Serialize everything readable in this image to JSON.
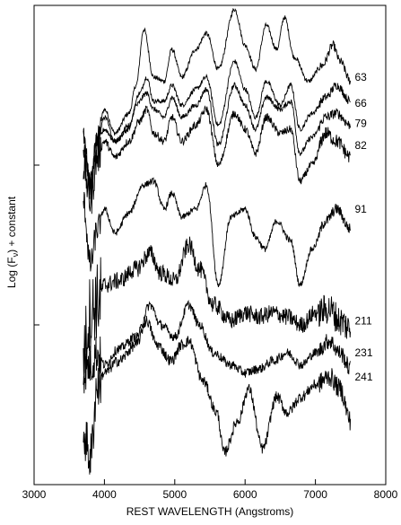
{
  "chart_data": {
    "type": "line",
    "xlabel": "REST WAVELENGTH  (Angstroms)",
    "ylabel_main": "Log (F",
    "ylabel_sub": "ν",
    "ylabel_tail": ")  + constant",
    "xlim": [
      3000,
      8000
    ],
    "x_ticks": [
      3000,
      4000,
      5000,
      6000,
      7000,
      8000
    ],
    "x_tick_labels": [
      "3000",
      "4000",
      "5000",
      "6000",
      "7000",
      "8000"
    ],
    "ylim": [
      0,
      12
    ],
    "y_ticks_unlabeled": [
      4,
      8
    ],
    "series": [
      {
        "name": "63",
        "offset": 10.2,
        "noise": 0.06,
        "points": [
          [
            3700,
            8.3
          ],
          [
            3800,
            7.6
          ],
          [
            3900,
            8.7
          ],
          [
            4000,
            9.4
          ],
          [
            4150,
            8.8
          ],
          [
            4350,
            9.3
          ],
          [
            4450,
            10.0
          ],
          [
            4560,
            11.4
          ],
          [
            4700,
            10.2
          ],
          [
            4850,
            10.1
          ],
          [
            4960,
            10.9
          ],
          [
            5100,
            10.2
          ],
          [
            5300,
            10.9
          ],
          [
            5450,
            11.3
          ],
          [
            5620,
            10.4
          ],
          [
            5850,
            11.9
          ],
          [
            6000,
            11.0
          ],
          [
            6150,
            10.4
          ],
          [
            6300,
            11.5
          ],
          [
            6450,
            10.9
          ],
          [
            6560,
            11.7
          ],
          [
            6700,
            10.7
          ],
          [
            6900,
            10.1
          ],
          [
            7100,
            10.5
          ],
          [
            7250,
            11.0
          ],
          [
            7350,
            10.6
          ],
          [
            7500,
            10.1
          ]
        ]
      },
      {
        "name": "66",
        "offset": 9.55,
        "noise": 0.06,
        "points": [
          [
            3700,
            8.8
          ],
          [
            3800,
            7.5
          ],
          [
            3900,
            8.6
          ],
          [
            4000,
            9.2
          ],
          [
            4150,
            8.6
          ],
          [
            4350,
            9.0
          ],
          [
            4500,
            9.8
          ],
          [
            4600,
            10.2
          ],
          [
            4700,
            9.6
          ],
          [
            4850,
            9.6
          ],
          [
            4960,
            10.0
          ],
          [
            5100,
            9.5
          ],
          [
            5300,
            9.9
          ],
          [
            5450,
            10.2
          ],
          [
            5620,
            9.0
          ],
          [
            5850,
            10.6
          ],
          [
            6000,
            9.9
          ],
          [
            6150,
            9.2
          ],
          [
            6300,
            10.1
          ],
          [
            6500,
            9.5
          ],
          [
            6650,
            10.0
          ],
          [
            6780,
            8.9
          ],
          [
            6950,
            9.3
          ],
          [
            7150,
            9.7
          ],
          [
            7300,
            10.0
          ],
          [
            7500,
            9.6
          ]
        ]
      },
      {
        "name": "79",
        "offset": 9.05,
        "noise": 0.07,
        "points": [
          [
            3700,
            8.9
          ],
          [
            3800,
            7.4
          ],
          [
            3900,
            8.5
          ],
          [
            4000,
            8.9
          ],
          [
            4150,
            8.6
          ],
          [
            4350,
            8.9
          ],
          [
            4450,
            9.5
          ],
          [
            4600,
            9.8
          ],
          [
            4700,
            9.4
          ],
          [
            4850,
            9.2
          ],
          [
            4960,
            9.7
          ],
          [
            5100,
            9.2
          ],
          [
            5300,
            9.5
          ],
          [
            5450,
            9.9
          ],
          [
            5620,
            8.5
          ],
          [
            5850,
            10.0
          ],
          [
            6000,
            9.5
          ],
          [
            6150,
            8.9
          ],
          [
            6300,
            9.7
          ],
          [
            6500,
            9.4
          ],
          [
            6650,
            9.6
          ],
          [
            6780,
            8.3
          ],
          [
            6950,
            8.7
          ],
          [
            7150,
            9.2
          ],
          [
            7300,
            9.3
          ],
          [
            7500,
            9.0
          ]
        ]
      },
      {
        "name": "82",
        "offset": 8.5,
        "noise": 0.1,
        "points": [
          [
            3700,
            8.0
          ],
          [
            3800,
            7.1
          ],
          [
            3900,
            8.2
          ],
          [
            4000,
            8.6
          ],
          [
            4150,
            8.2
          ],
          [
            4350,
            8.6
          ],
          [
            4500,
            9.1
          ],
          [
            4600,
            9.4
          ],
          [
            4700,
            8.8
          ],
          [
            4850,
            8.6
          ],
          [
            4960,
            9.2
          ],
          [
            5100,
            8.6
          ],
          [
            5300,
            9.0
          ],
          [
            5450,
            9.4
          ],
          [
            5620,
            8.0
          ],
          [
            5850,
            9.3
          ],
          [
            6000,
            8.9
          ],
          [
            6150,
            8.3
          ],
          [
            6300,
            9.2
          ],
          [
            6500,
            8.8
          ],
          [
            6650,
            8.9
          ],
          [
            6780,
            7.6
          ],
          [
            6950,
            8.0
          ],
          [
            7150,
            8.8
          ],
          [
            7300,
            8.6
          ],
          [
            7500,
            8.2
          ]
        ]
      },
      {
        "name": "91",
        "offset": 6.9,
        "noise": 0.08,
        "points": [
          [
            3700,
            7.1
          ],
          [
            3800,
            5.5
          ],
          [
            3900,
            6.4
          ],
          [
            4000,
            6.9
          ],
          [
            4150,
            6.3
          ],
          [
            4350,
            6.8
          ],
          [
            4550,
            7.5
          ],
          [
            4700,
            7.6
          ],
          [
            4850,
            6.9
          ],
          [
            4960,
            7.3
          ],
          [
            5100,
            6.7
          ],
          [
            5300,
            6.9
          ],
          [
            5450,
            7.5
          ],
          [
            5620,
            5.0
          ],
          [
            5800,
            6.7
          ],
          [
            6000,
            6.9
          ],
          [
            6150,
            6.2
          ],
          [
            6280,
            5.9
          ],
          [
            6450,
            6.6
          ],
          [
            6650,
            6.1
          ],
          [
            6780,
            5.0
          ],
          [
            6950,
            5.9
          ],
          [
            7150,
            6.6
          ],
          [
            7300,
            6.9
          ],
          [
            7500,
            6.4
          ]
        ]
      },
      {
        "name": "211",
        "offset": 4.1,
        "noise": 0.22,
        "points": [
          [
            3700,
            3.3
          ],
          [
            3800,
            4.3
          ],
          [
            3900,
            4.6
          ],
          [
            4000,
            5.0
          ],
          [
            4200,
            5.1
          ],
          [
            4450,
            5.4
          ],
          [
            4650,
            5.8
          ],
          [
            4800,
            5.3
          ],
          [
            5000,
            5.1
          ],
          [
            5200,
            6.0
          ],
          [
            5350,
            5.4
          ],
          [
            5550,
            4.5
          ],
          [
            5800,
            4.1
          ],
          [
            6000,
            4.3
          ],
          [
            6200,
            4.2
          ],
          [
            6400,
            4.3
          ],
          [
            6600,
            4.2
          ],
          [
            6800,
            4.0
          ],
          [
            7000,
            4.3
          ],
          [
            7200,
            4.4
          ],
          [
            7350,
            4.1
          ],
          [
            7500,
            3.9
          ]
        ]
      },
      {
        "name": "231",
        "offset": 3.3,
        "noise": 0.12,
        "points": [
          [
            3700,
            2.8
          ],
          [
            3800,
            3.0
          ],
          [
            3900,
            3.3
          ],
          [
            4000,
            3.0
          ],
          [
            4200,
            3.4
          ],
          [
            4450,
            3.7
          ],
          [
            4650,
            4.5
          ],
          [
            4800,
            4.0
          ],
          [
            5000,
            3.7
          ],
          [
            5200,
            4.5
          ],
          [
            5350,
            4.0
          ],
          [
            5550,
            3.3
          ],
          [
            5800,
            3.0
          ],
          [
            6000,
            2.8
          ],
          [
            6200,
            2.9
          ],
          [
            6400,
            3.1
          ],
          [
            6600,
            3.3
          ],
          [
            6800,
            3.0
          ],
          [
            7000,
            3.3
          ],
          [
            7200,
            3.6
          ],
          [
            7350,
            3.3
          ],
          [
            7500,
            2.9
          ]
        ]
      },
      {
        "name": "241",
        "offset": 2.7,
        "noise": 0.14,
        "points": [
          [
            3700,
            1.3
          ],
          [
            3800,
            0.7
          ],
          [
            3900,
            2.5
          ],
          [
            4000,
            2.8
          ],
          [
            4200,
            3.1
          ],
          [
            4450,
            3.5
          ],
          [
            4600,
            4.1
          ],
          [
            4750,
            3.5
          ],
          [
            4950,
            3.1
          ],
          [
            5100,
            3.5
          ],
          [
            5200,
            3.6
          ],
          [
            5400,
            2.6
          ],
          [
            5600,
            1.8
          ],
          [
            5700,
            0.8
          ],
          [
            5900,
            1.6
          ],
          [
            6050,
            2.4
          ],
          [
            6250,
            0.9
          ],
          [
            6450,
            2.2
          ],
          [
            6600,
            1.8
          ],
          [
            6800,
            2.2
          ],
          [
            7000,
            2.5
          ],
          [
            7200,
            2.7
          ],
          [
            7350,
            2.4
          ],
          [
            7500,
            1.6
          ]
        ]
      }
    ]
  }
}
